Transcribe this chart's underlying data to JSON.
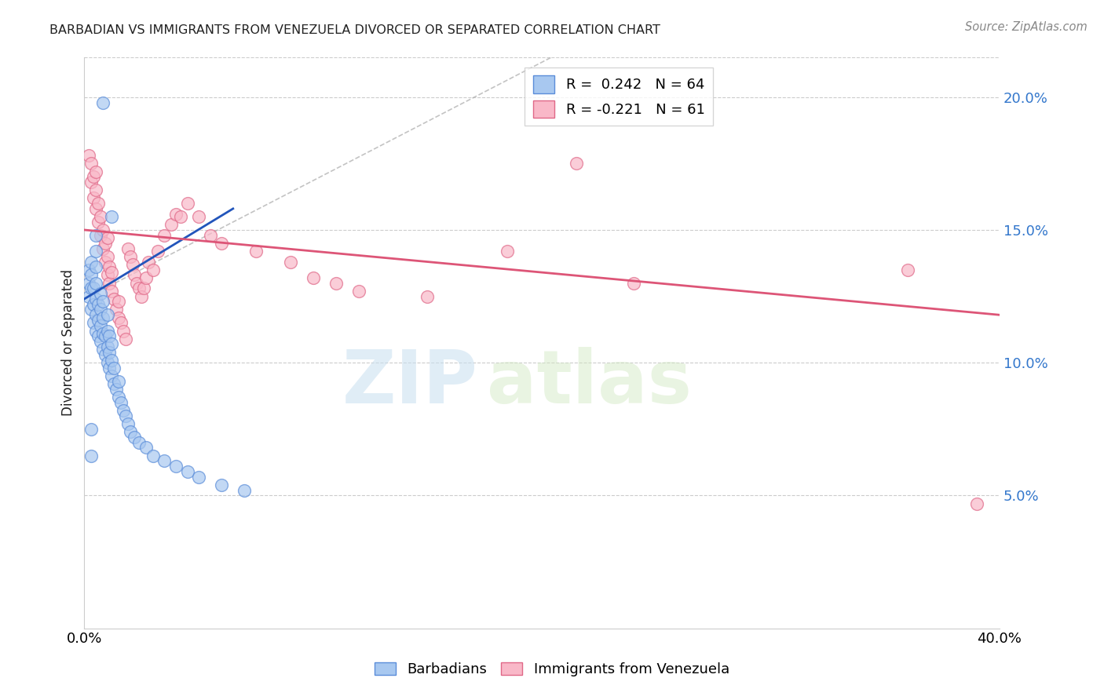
{
  "title": "BARBADIAN VS IMMIGRANTS FROM VENEZUELA DIVORCED OR SEPARATED CORRELATION CHART",
  "source": "Source: ZipAtlas.com",
  "ylabel": "Divorced or Separated",
  "watermark_zip": "ZIP",
  "watermark_atlas": "atlas",
  "blue_R": 0.242,
  "blue_N": 64,
  "pink_R": -0.221,
  "pink_N": 61,
  "xlim": [
    0.0,
    0.4
  ],
  "ylim": [
    0.0,
    0.215
  ],
  "yticks": [
    0.05,
    0.1,
    0.15,
    0.2
  ],
  "ytick_labels": [
    "5.0%",
    "10.0%",
    "15.0%",
    "20.0%"
  ],
  "xticks": [
    0.0,
    0.05,
    0.1,
    0.15,
    0.2,
    0.25,
    0.3,
    0.35,
    0.4
  ],
  "xtick_labels": [
    "0.0%",
    "",
    "",
    "",
    "",
    "",
    "",
    "",
    "40.0%"
  ],
  "blue_fill": "#a8c8f0",
  "blue_edge": "#5b8dd9",
  "pink_fill": "#f9b8c8",
  "pink_edge": "#e06888",
  "blue_line_color": "#2255bb",
  "pink_line_color": "#dd5577",
  "blue_scatter_x": [
    0.002,
    0.002,
    0.002,
    0.003,
    0.003,
    0.003,
    0.003,
    0.004,
    0.004,
    0.004,
    0.005,
    0.005,
    0.005,
    0.005,
    0.005,
    0.005,
    0.005,
    0.006,
    0.006,
    0.006,
    0.007,
    0.007,
    0.007,
    0.007,
    0.008,
    0.008,
    0.008,
    0.008,
    0.009,
    0.009,
    0.01,
    0.01,
    0.01,
    0.01,
    0.011,
    0.011,
    0.011,
    0.012,
    0.012,
    0.012,
    0.013,
    0.013,
    0.014,
    0.015,
    0.015,
    0.016,
    0.017,
    0.018,
    0.019,
    0.02,
    0.022,
    0.024,
    0.027,
    0.03,
    0.035,
    0.04,
    0.045,
    0.05,
    0.06,
    0.07,
    0.012,
    0.008,
    0.003,
    0.003
  ],
  "blue_scatter_y": [
    0.125,
    0.13,
    0.135,
    0.12,
    0.128,
    0.133,
    0.138,
    0.115,
    0.122,
    0.128,
    0.112,
    0.118,
    0.124,
    0.13,
    0.136,
    0.142,
    0.148,
    0.11,
    0.116,
    0.122,
    0.108,
    0.114,
    0.12,
    0.126,
    0.105,
    0.111,
    0.117,
    0.123,
    0.103,
    0.11,
    0.1,
    0.106,
    0.112,
    0.118,
    0.098,
    0.104,
    0.11,
    0.095,
    0.101,
    0.107,
    0.092,
    0.098,
    0.09,
    0.087,
    0.093,
    0.085,
    0.082,
    0.08,
    0.077,
    0.074,
    0.072,
    0.07,
    0.068,
    0.065,
    0.063,
    0.061,
    0.059,
    0.057,
    0.054,
    0.052,
    0.155,
    0.198,
    0.065,
    0.075
  ],
  "pink_scatter_x": [
    0.002,
    0.003,
    0.003,
    0.004,
    0.004,
    0.005,
    0.005,
    0.005,
    0.006,
    0.006,
    0.007,
    0.007,
    0.008,
    0.008,
    0.009,
    0.009,
    0.01,
    0.01,
    0.01,
    0.011,
    0.011,
    0.012,
    0.012,
    0.013,
    0.014,
    0.015,
    0.015,
    0.016,
    0.017,
    0.018,
    0.019,
    0.02,
    0.021,
    0.022,
    0.023,
    0.024,
    0.025,
    0.026,
    0.027,
    0.028,
    0.03,
    0.032,
    0.035,
    0.038,
    0.04,
    0.042,
    0.045,
    0.05,
    0.055,
    0.06,
    0.075,
    0.09,
    0.1,
    0.11,
    0.12,
    0.15,
    0.185,
    0.215,
    0.24,
    0.36,
    0.39
  ],
  "pink_scatter_y": [
    0.178,
    0.168,
    0.175,
    0.162,
    0.17,
    0.158,
    0.165,
    0.172,
    0.153,
    0.16,
    0.148,
    0.155,
    0.143,
    0.15,
    0.138,
    0.145,
    0.133,
    0.14,
    0.147,
    0.13,
    0.136,
    0.127,
    0.134,
    0.124,
    0.12,
    0.117,
    0.123,
    0.115,
    0.112,
    0.109,
    0.143,
    0.14,
    0.137,
    0.133,
    0.13,
    0.128,
    0.125,
    0.128,
    0.132,
    0.138,
    0.135,
    0.142,
    0.148,
    0.152,
    0.156,
    0.155,
    0.16,
    0.155,
    0.148,
    0.145,
    0.142,
    0.138,
    0.132,
    0.13,
    0.127,
    0.125,
    0.142,
    0.175,
    0.13,
    0.135,
    0.047
  ]
}
